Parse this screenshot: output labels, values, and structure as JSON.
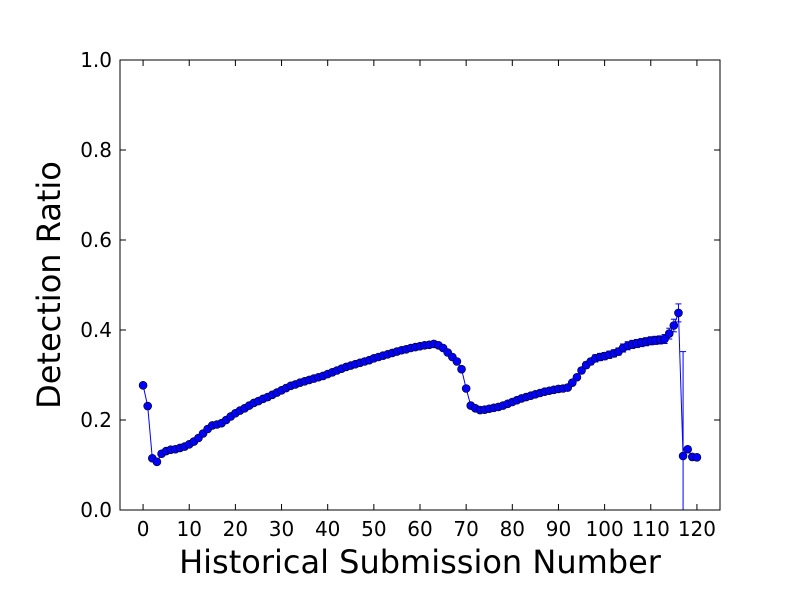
{
  "chart_data": {
    "type": "errorbar-line",
    "xlabel": "Historical Submission Number",
    "ylabel": "Detection Ratio",
    "x": [
      0,
      1,
      2,
      3,
      4,
      5,
      6,
      7,
      8,
      9,
      10,
      11,
      12,
      13,
      14,
      15,
      16,
      17,
      18,
      19,
      20,
      21,
      22,
      23,
      24,
      25,
      26,
      27,
      28,
      29,
      30,
      31,
      32,
      33,
      34,
      35,
      36,
      37,
      38,
      39,
      40,
      41,
      42,
      43,
      44,
      45,
      46,
      47,
      48,
      49,
      50,
      51,
      52,
      53,
      54,
      55,
      56,
      57,
      58,
      59,
      60,
      61,
      62,
      63,
      64,
      65,
      66,
      67,
      68,
      69,
      70,
      71,
      72,
      73,
      74,
      75,
      76,
      77,
      78,
      79,
      80,
      81,
      82,
      83,
      84,
      85,
      86,
      87,
      88,
      89,
      90,
      91,
      92,
      93,
      94,
      95,
      96,
      97,
      98,
      99,
      100,
      101,
      102,
      103,
      104,
      105,
      106,
      107,
      108,
      109,
      110,
      111,
      112,
      113,
      114,
      115,
      116,
      117,
      118,
      119,
      120
    ],
    "series": [
      {
        "color": "#0000ff",
        "values": [
          0.277,
          0.231,
          0.115,
          0.107,
          0.125,
          0.131,
          0.134,
          0.135,
          0.138,
          0.141,
          0.146,
          0.152,
          0.16,
          0.17,
          0.18,
          0.188,
          0.19,
          0.193,
          0.2,
          0.208,
          0.215,
          0.221,
          0.226,
          0.232,
          0.238,
          0.242,
          0.247,
          0.251,
          0.256,
          0.261,
          0.266,
          0.271,
          0.276,
          0.279,
          0.283,
          0.286,
          0.289,
          0.292,
          0.295,
          0.298,
          0.302,
          0.306,
          0.31,
          0.314,
          0.318,
          0.321,
          0.324,
          0.327,
          0.33,
          0.333,
          0.337,
          0.34,
          0.343,
          0.346,
          0.349,
          0.352,
          0.355,
          0.357,
          0.36,
          0.362,
          0.364,
          0.366,
          0.367,
          0.369,
          0.366,
          0.36,
          0.35,
          0.34,
          0.33,
          0.313,
          0.27,
          0.232,
          0.226,
          0.222,
          0.223,
          0.225,
          0.227,
          0.229,
          0.232,
          0.236,
          0.24,
          0.244,
          0.248,
          0.251,
          0.254,
          0.257,
          0.26,
          0.263,
          0.265,
          0.267,
          0.269,
          0.27,
          0.272,
          0.283,
          0.295,
          0.31,
          0.322,
          0.33,
          0.337,
          0.34,
          0.342,
          0.345,
          0.348,
          0.352,
          0.36,
          0.365,
          0.368,
          0.37,
          0.372,
          0.374,
          0.376,
          0.377,
          0.378,
          0.38,
          0.392,
          0.41,
          0.438,
          0.12,
          0.135,
          0.118,
          0.117
        ],
        "errors": [
          0.002,
          0.002,
          0.002,
          0.002,
          0.002,
          0.002,
          0.002,
          0.002,
          0.002,
          0.002,
          0.002,
          0.002,
          0.002,
          0.002,
          0.002,
          0.002,
          0.002,
          0.002,
          0.002,
          0.002,
          0.002,
          0.002,
          0.002,
          0.002,
          0.002,
          0.002,
          0.002,
          0.002,
          0.002,
          0.002,
          0.002,
          0.002,
          0.002,
          0.002,
          0.002,
          0.002,
          0.002,
          0.002,
          0.002,
          0.002,
          0.002,
          0.002,
          0.002,
          0.002,
          0.002,
          0.002,
          0.002,
          0.002,
          0.002,
          0.002,
          0.002,
          0.002,
          0.002,
          0.002,
          0.002,
          0.002,
          0.002,
          0.002,
          0.002,
          0.002,
          0.003,
          0.003,
          0.003,
          0.003,
          0.003,
          0.003,
          0.003,
          0.003,
          0.003,
          0.003,
          0.003,
          0.003,
          0.003,
          0.003,
          0.003,
          0.003,
          0.003,
          0.003,
          0.003,
          0.003,
          0.003,
          0.003,
          0.003,
          0.003,
          0.003,
          0.003,
          0.003,
          0.003,
          0.003,
          0.003,
          0.003,
          0.004,
          0.004,
          0.005,
          0.005,
          0.006,
          0.007,
          0.007,
          0.008,
          0.008,
          0.008,
          0.008,
          0.008,
          0.008,
          0.009,
          0.009,
          0.009,
          0.009,
          0.009,
          0.009,
          0.009,
          0.009,
          0.009,
          0.01,
          0.012,
          0.014,
          0.02,
          0.232,
          0.005,
          0.004,
          0.004
        ]
      }
    ],
    "xlim": [
      -5,
      125
    ],
    "ylim": [
      0,
      1
    ],
    "xticks": [
      0,
      10,
      20,
      30,
      40,
      50,
      60,
      70,
      80,
      90,
      100,
      110,
      120
    ],
    "yticks": [
      {
        "value": 0,
        "label": "0.0"
      },
      0.2,
      0.4,
      0.6,
      0.8,
      {
        "value": 1,
        "label": "1.0"
      }
    ]
  }
}
